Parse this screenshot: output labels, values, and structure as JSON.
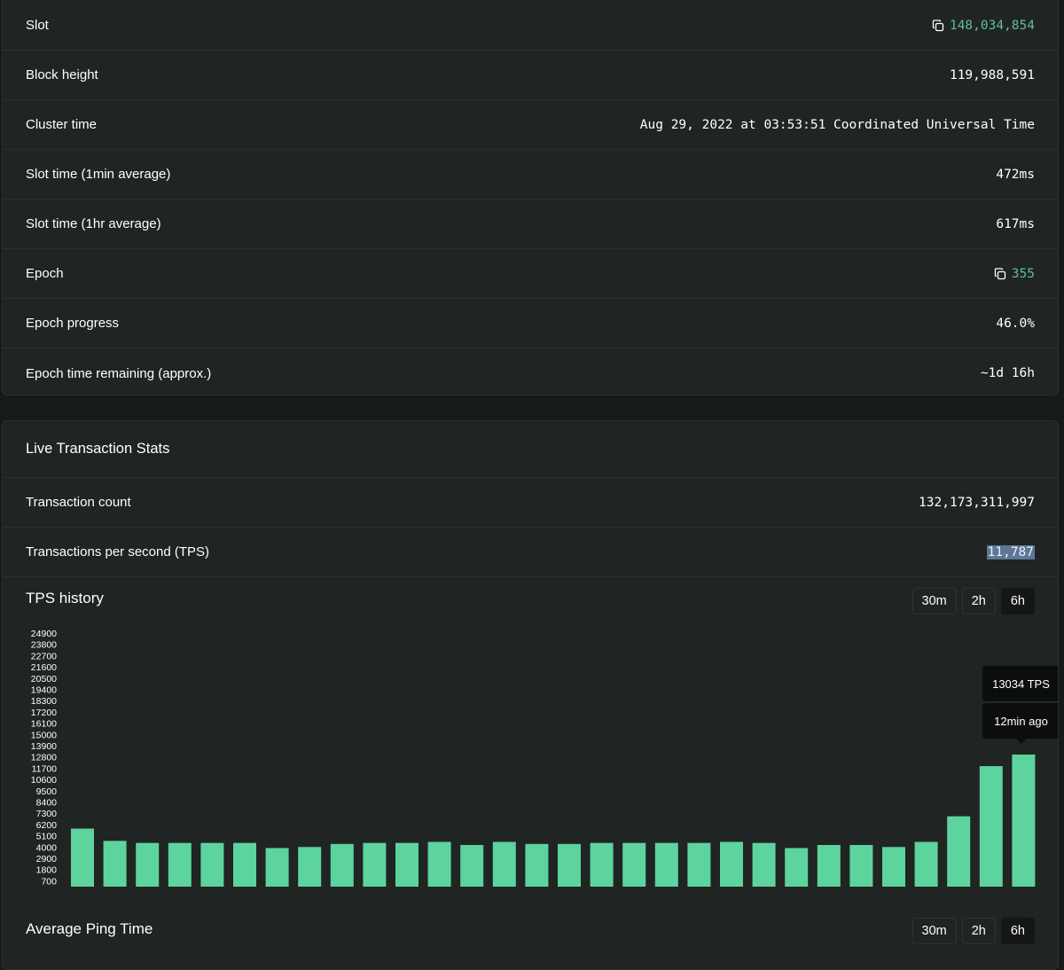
{
  "network_stats": [
    {
      "label": "Slot",
      "value": "148,034,854",
      "copyable": true
    },
    {
      "label": "Block height",
      "value": "119,988,591",
      "copyable": false
    },
    {
      "label": "Cluster time",
      "value": "Aug 29, 2022 at 03:53:51 Coordinated Universal Time",
      "copyable": false
    },
    {
      "label": "Slot time (1min average)",
      "value": "472ms",
      "copyable": false
    },
    {
      "label": "Slot time (1hr average)",
      "value": "617ms",
      "copyable": false
    },
    {
      "label": "Epoch",
      "value": "355",
      "copyable": true
    },
    {
      "label": "Epoch progress",
      "value": "46.0%",
      "copyable": false
    },
    {
      "label": "Epoch time remaining (approx.)",
      "value": "~1d 16h",
      "copyable": false
    }
  ],
  "live_stats": {
    "title": "Live Transaction Stats",
    "transaction_count_label": "Transaction count",
    "transaction_count_value": "132,173,311,997",
    "tps_label": "Transactions per second (TPS)",
    "tps_value": "11,787"
  },
  "tps_history": {
    "title": "TPS history",
    "range_buttons": [
      "30m",
      "2h",
      "6h"
    ],
    "active_range": "6h",
    "tooltip_value": "13034 TPS",
    "tooltip_time": "12min ago"
  },
  "ping": {
    "title": "Average Ping Time",
    "range_buttons": [
      "30m",
      "2h",
      "6h"
    ],
    "active_range": "6h"
  },
  "colors": {
    "accent": "#5ebf96",
    "bar": "#5dd39e",
    "card_bg": "#202423",
    "page_bg": "#161a19",
    "selection": "#5d7794"
  },
  "icons": {
    "copy": "copy-icon"
  },
  "chart_data": {
    "type": "bar",
    "y_tick_labels": [
      "24900",
      "23800",
      "22700",
      "21600",
      "20500",
      "19400",
      "18300",
      "17200",
      "16100",
      "15000",
      "13900",
      "12800",
      "11700",
      "10600",
      "9500",
      "8400",
      "7300",
      "6200",
      "5100",
      "4000",
      "2900",
      "1800",
      "700"
    ],
    "ylim": [
      700,
      24900
    ],
    "values": [
      5800,
      4600,
      4400,
      4400,
      4400,
      4400,
      3900,
      4000,
      4300,
      4400,
      4400,
      4500,
      4200,
      4500,
      4300,
      4300,
      4400,
      4400,
      4400,
      4400,
      4500,
      4400,
      3900,
      4200,
      4200,
      4000,
      4500,
      7000,
      11900,
      13034
    ],
    "grid": false,
    "legend": "none"
  }
}
